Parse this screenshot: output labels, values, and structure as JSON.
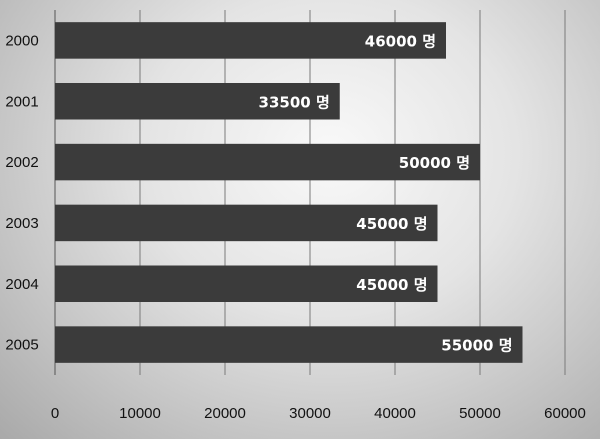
{
  "chart_data": {
    "type": "bar",
    "orientation": "horizontal",
    "title": "",
    "xlabel": "",
    "ylabel": "",
    "categories": [
      "2000",
      "2001",
      "2002",
      "2003",
      "2004",
      "2005"
    ],
    "values": [
      46000,
      33500,
      50000,
      45000,
      45000,
      55000
    ],
    "data_labels": [
      "46000 명",
      "33500 명",
      "50000 명",
      "45000 명",
      "45000 명",
      "55000 명"
    ],
    "xlim": [
      0,
      60000
    ],
    "xticks": [
      0,
      10000,
      20000,
      30000,
      40000,
      50000,
      60000
    ],
    "xtick_labels": [
      "0",
      "10000",
      "20000",
      "30000",
      "40000",
      "50000",
      "60000"
    ],
    "grid": true,
    "legend": "none",
    "colors": {
      "bar": "#3b3b3b",
      "label": "#ffffff",
      "grid": "#7a7a7a"
    }
  }
}
